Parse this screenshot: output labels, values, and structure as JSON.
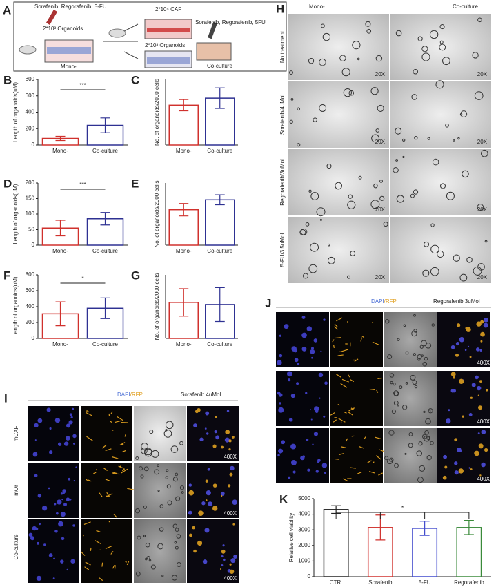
{
  "chart_data": [
    {
      "type": "bar",
      "panel": "B",
      "y_label": "Length of organoids(uM)",
      "categories": [
        "Mono-",
        "Co-culture"
      ],
      "values": [
        80,
        240
      ],
      "errors": [
        25,
        90
      ],
      "colors": [
        "#d0312d",
        "#2e3192"
      ],
      "ylim": [
        0,
        800
      ],
      "yticks": [
        0,
        200,
        400,
        600,
        800
      ],
      "annotation": "***"
    },
    {
      "type": "bar",
      "panel": "C",
      "y_label": "No. of organoids/2000 cells",
      "categories": [
        "Mono-",
        "Co-culture"
      ],
      "values": [
        85,
        100
      ],
      "errors": [
        12,
        22
      ],
      "colors": [
        "#d0312d",
        "#2e3192"
      ],
      "ylim": [
        0,
        140
      ]
    },
    {
      "type": "bar",
      "panel": "D",
      "y_label": "Length of organoids(uM)",
      "categories": [
        "Mono-",
        "Co-culture"
      ],
      "values": [
        55,
        85
      ],
      "errors": [
        25,
        20
      ],
      "colors": [
        "#d0312d",
        "#2e3192"
      ],
      "ylim": [
        0,
        200
      ],
      "yticks": [
        0,
        50,
        100,
        150,
        200
      ],
      "annotation": "***"
    },
    {
      "type": "bar",
      "panel": "E",
      "y_label": "No. of organoids/2000 cells",
      "categories": [
        "Mono-",
        "Co-culture"
      ],
      "values": [
        57,
        73
      ],
      "errors": [
        10,
        8
      ],
      "colors": [
        "#d0312d",
        "#2e3192"
      ],
      "ylim": [
        0,
        100
      ]
    },
    {
      "type": "bar",
      "panel": "F",
      "y_label": "Length of organoids(uM)",
      "categories": [
        "Mono-",
        "Co-culture"
      ],
      "values": [
        310,
        380
      ],
      "errors": [
        150,
        130
      ],
      "colors": [
        "#d0312d",
        "#2e3192"
      ],
      "ylim": [
        0,
        800
      ],
      "yticks": [
        0,
        200,
        400,
        600,
        800
      ],
      "annotation": "*"
    },
    {
      "type": "bar",
      "panel": "G",
      "y_label": "No. of organoids/2000 cells",
      "categories": [
        "Mono-",
        "Co-culture"
      ],
      "values": [
        34,
        32
      ],
      "errors": [
        13,
        16
      ],
      "colors": [
        "#d0312d",
        "#2e3192"
      ],
      "ylim": [
        0,
        60
      ]
    },
    {
      "type": "bar",
      "panel": "K",
      "y_label": "Relative cell viability",
      "categories": [
        "CTR.",
        "Sorafenib",
        "5-FU",
        "Regorafenib"
      ],
      "values": [
        4300,
        3150,
        3100,
        3150
      ],
      "errors": [
        250,
        800,
        450,
        450
      ],
      "colors": [
        "#222222",
        "#d0312d",
        "#3f48cc",
        "#3a8a3a"
      ],
      "ylim": [
        0,
        5000
      ],
      "yticks": [
        0,
        1000,
        2000,
        3000,
        4000,
        5000
      ],
      "annotation": "*"
    }
  ],
  "schematic": {
    "label": "A",
    "drug_mono": "Sorafenib, Regorafenib, 5-FU",
    "organoids_mono": "2*10³ Organoids",
    "mono": "Mono-",
    "caf": "2*10⁴ CAF",
    "drug_co": "Sorafenib, Regorafenib, 5FU",
    "organoids_co": "2*10³ Organoids",
    "co": "Co-culture"
  },
  "panel_h": {
    "label": "H",
    "columns": [
      "Mono-",
      "Co-culture"
    ],
    "rows": [
      "No treatment",
      "Sorafenib/4uMol",
      "Regorafenib/3uMol",
      "5-FU/3.5uMol"
    ],
    "magnification": "20X"
  },
  "panel_i": {
    "label": "I",
    "stain": "DAPI",
    "stain2": "/RFP",
    "treatment": "Sorafenib 4uMol",
    "rows": [
      "mCAF",
      "mOr",
      "Co-culture"
    ],
    "magnification": "400X"
  },
  "panel_j": {
    "label": "J",
    "stain": "DAPI",
    "stain2": "/RFP",
    "treatment": "Regorafenib 3uMol",
    "magnification": "400X"
  }
}
